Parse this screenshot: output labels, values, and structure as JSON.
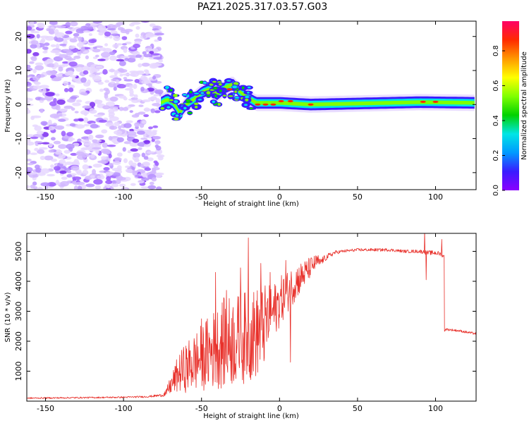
{
  "title": "PAZ1.2025.317.03.57.G03",
  "colors": {
    "snr_line": "#e8302a",
    "scatter_purple": "#7a2cf0",
    "cbar_stops": [
      "#8b00ff",
      "#3a1bff",
      "#0099ff",
      "#00e5e5",
      "#00d200",
      "#80ff00",
      "#ffff00",
      "#ff9900",
      "#ff2a00",
      "#ff0066"
    ]
  },
  "chart_data": [
    {
      "type": "heatmap",
      "title": "PAZ1.2025.317.03.57.G03",
      "xlabel": "Height of straight line (km)",
      "ylabel": "Frequency (Hz)",
      "xlim": [
        -162,
        126
      ],
      "ylim": [
        -25,
        24.5
      ],
      "xticks": [
        -150,
        -100,
        -50,
        0,
        50,
        100
      ],
      "xtick_labels": [
        "-150",
        "-100",
        "-50",
        "0",
        "50",
        "100"
      ],
      "yticks": [
        20,
        10,
        0,
        -10,
        -20
      ],
      "ytick_labels": [
        "20",
        "10",
        "0",
        "-10",
        "-20"
      ],
      "noise_region_x": [
        -162,
        -76
      ],
      "ridge": [
        {
          "x": -76,
          "y": 0.5
        },
        {
          "x": -72,
          "y": 1.5
        },
        {
          "x": -68,
          "y": 0.5
        },
        {
          "x": -64,
          "y": -2.5
        },
        {
          "x": -60,
          "y": 0
        },
        {
          "x": -55,
          "y": 1.5
        },
        {
          "x": -50,
          "y": 3.5
        },
        {
          "x": -45,
          "y": 4.5
        },
        {
          "x": -40,
          "y": 3
        },
        {
          "x": -35,
          "y": 5
        },
        {
          "x": -30,
          "y": 6
        },
        {
          "x": -26,
          "y": 4
        },
        {
          "x": -22,
          "y": 2.5
        },
        {
          "x": -15,
          "y": 0.5
        },
        {
          "x": 0,
          "y": 0.5
        },
        {
          "x": 20,
          "y": 0
        },
        {
          "x": 50,
          "y": 0.3
        },
        {
          "x": 90,
          "y": 0.7
        },
        {
          "x": 126,
          "y": 0.5
        }
      ],
      "hotspots": [
        {
          "x": -14,
          "y": 0
        },
        {
          "x": -9,
          "y": 0
        },
        {
          "x": -4,
          "y": 0
        },
        {
          "x": 1,
          "y": 1
        },
        {
          "x": 7,
          "y": 1
        },
        {
          "x": 20,
          "y": 0
        },
        {
          "x": 92,
          "y": 0.8
        },
        {
          "x": 100,
          "y": 0.8
        },
        {
          "x": -32,
          "y": 4.5
        }
      ],
      "colorbar": {
        "label": "Normalized spectral amplitude",
        "range": [
          0,
          0.97
        ],
        "ticks": [
          0.0,
          0.2,
          0.4,
          0.6,
          0.8
        ],
        "tick_labels": [
          "0.0",
          "0.2",
          "0.4",
          "0.6",
          "0.8"
        ]
      }
    },
    {
      "type": "line",
      "xlabel": "Height of straight line (km)",
      "ylabel": "SNR (10 * v/v)",
      "xlim": [
        -162,
        126
      ],
      "ylim": [
        0,
        5600
      ],
      "xticks": [
        -150,
        -100,
        -50,
        0,
        50,
        100
      ],
      "xtick_labels": [
        "-150",
        "-100",
        "-50",
        "0",
        "50",
        "100"
      ],
      "yticks": [
        1000,
        2000,
        3000,
        4000,
        5000
      ],
      "ytick_labels": [
        "1000",
        "2000",
        "3000",
        "4000",
        "5000"
      ],
      "series": [
        {
          "name": "SNR",
          "x": [
            -162,
            -140,
            -120,
            -100,
            -85,
            -75,
            -70,
            -65,
            -60,
            -55,
            -50,
            -45,
            -40,
            -35,
            -30,
            -25,
            -20,
            -15,
            -10,
            -5,
            0,
            5,
            10,
            15,
            20,
            25,
            30,
            35,
            40,
            50,
            60,
            70,
            80,
            90,
            95,
            100,
            104,
            105.5,
            106,
            110,
            115,
            120,
            126
          ],
          "baseline": [
            100,
            110,
            120,
            130,
            150,
            200,
            350,
            600,
            700,
            800,
            900,
            1000,
            1100,
            1200,
            1250,
            1300,
            1400,
            1500,
            1800,
            2400,
            2900,
            3300,
            3650,
            3950,
            4300,
            4600,
            4800,
            4950,
            5000,
            5050,
            5050,
            5050,
            5000,
            5000,
            4950,
            4950,
            4900,
            4800,
            2400,
            2380,
            2350,
            2300,
            2250
          ],
          "spread": [
            50,
            50,
            50,
            50,
            60,
            100,
            400,
            900,
            1200,
            1400,
            1600,
            1800,
            2000,
            2200,
            2200,
            2200,
            2200,
            2200,
            2000,
            1400,
            1200,
            1000,
            900,
            700,
            500,
            300,
            200,
            150,
            100,
            100,
            100,
            100,
            100,
            120,
            150,
            150,
            150,
            200,
            80,
            80,
            80,
            80,
            80
          ],
          "spikes": [
            {
              "x": -50,
              "y": 2750
            },
            {
              "x": -41,
              "y": 4300
            },
            {
              "x": -34,
              "y": 3700
            },
            {
              "x": -25,
              "y": 4450
            },
            {
              "x": -20,
              "y": 5450
            },
            {
              "x": -12,
              "y": 4600
            },
            {
              "x": -6,
              "y": 4300
            },
            {
              "x": 4,
              "y": 4700
            },
            {
              "x": 7,
              "y": 1300
            },
            {
              "x": 93,
              "y": 5700
            },
            {
              "x": 94,
              "y": 4050
            },
            {
              "x": 104,
              "y": 5400
            }
          ]
        }
      ]
    }
  ]
}
